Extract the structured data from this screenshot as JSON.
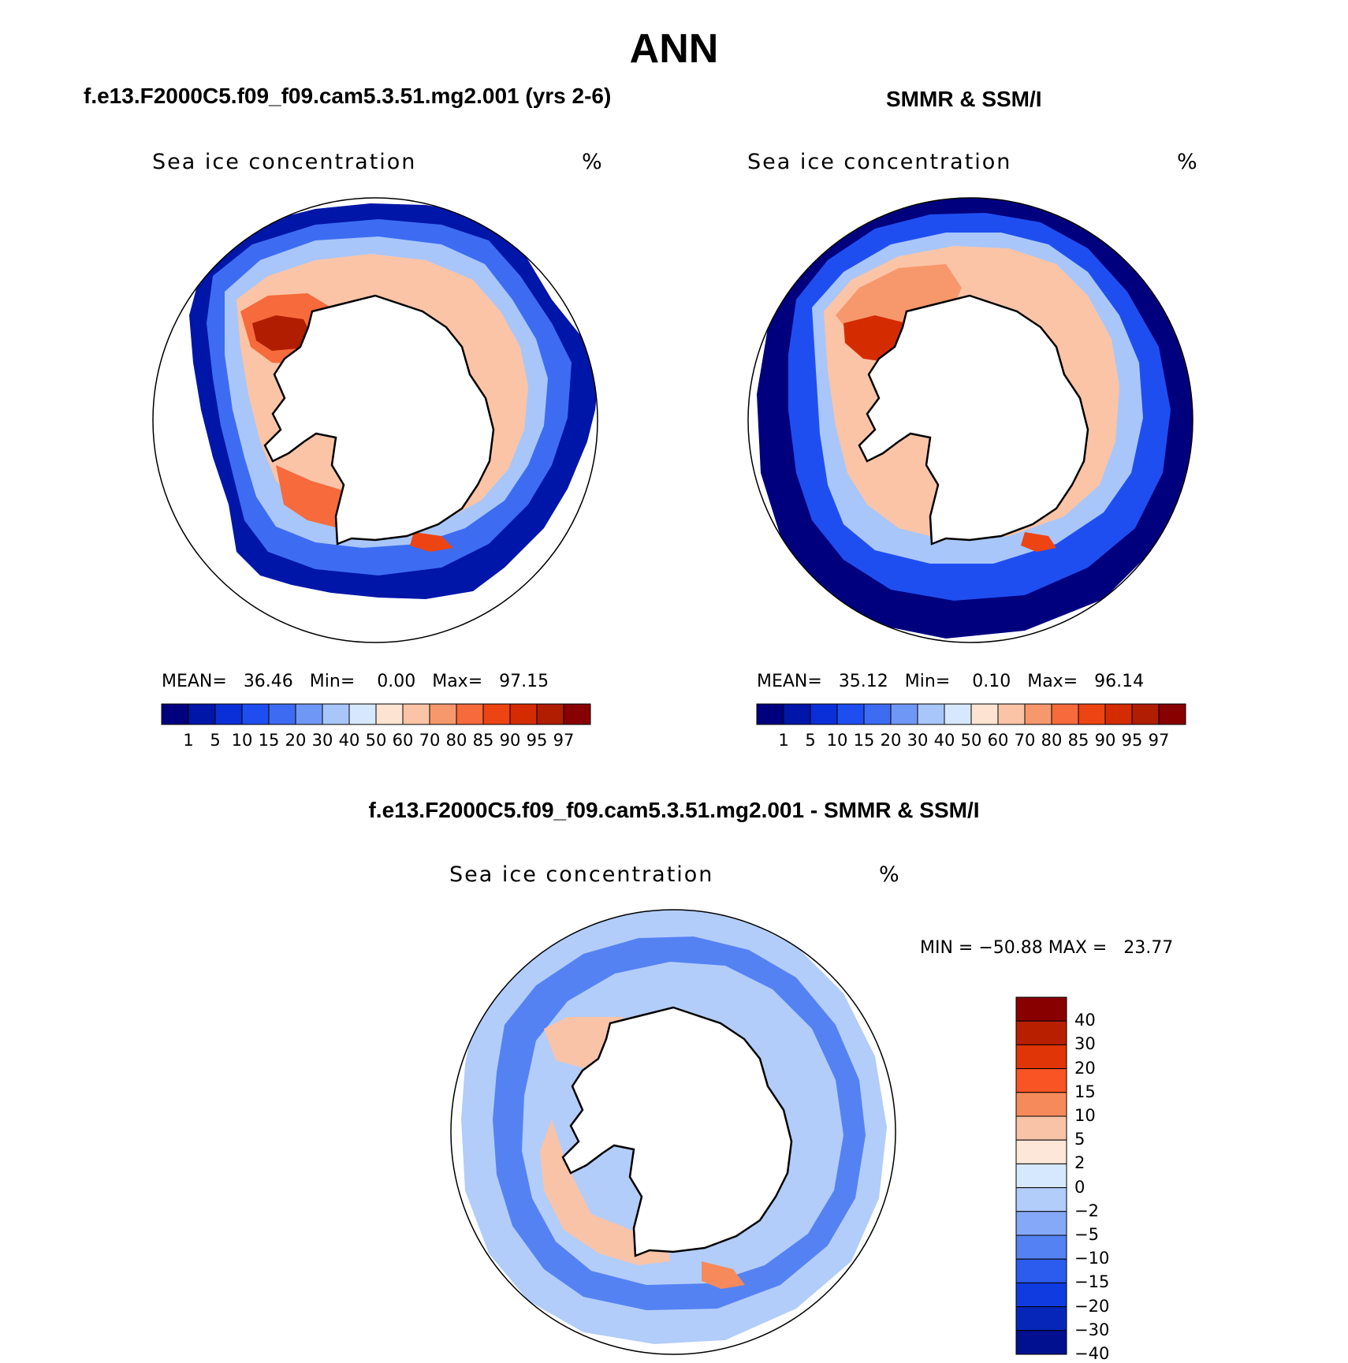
{
  "main_title": "ANN",
  "panels": {
    "model": {
      "title": "f.e13.F2000C5.f09_f09.cam5.3.51.mg2.001 (yrs 2-6)",
      "variable": "Sea ice concentration",
      "units": "%",
      "stats": {
        "mean_label": "MEAN=",
        "mean": "36.46",
        "min_label": "Min=",
        "min": "0.00",
        "max_label": "Max=",
        "max": "97.15"
      }
    },
    "obs": {
      "title": "SMMR & SSM/I",
      "variable": "Sea ice concentration",
      "units": "%",
      "stats": {
        "mean_label": "MEAN=",
        "mean": "35.12",
        "min_label": "Min=",
        "min": "0.10",
        "max_label": "Max=",
        "max": "96.14"
      }
    },
    "diff": {
      "title": "f.e13.F2000C5.f09_f09.cam5.3.51.mg2.001 - SMMR & SSM/I",
      "variable": "Sea ice concentration",
      "units": "%",
      "stats": {
        "min_label": "MIN =",
        "min": "−50.88",
        "max_label": "MAX =",
        "max": "23.77"
      }
    }
  },
  "abs_colorbar": {
    "colors": [
      "#00007f",
      "#0016a8",
      "#0a2fd8",
      "#1f4ef0",
      "#3d6cf2",
      "#6f97f5",
      "#a8c6fa",
      "#d6e8fd",
      "#fde4d2",
      "#fbc4a7",
      "#f7986c",
      "#f66a3b",
      "#ed4413",
      "#d42c00",
      "#b01d00",
      "#880000"
    ],
    "ticks": [
      "1",
      "5",
      "10",
      "15",
      "20",
      "30",
      "40",
      "50",
      "60",
      "70",
      "80",
      "85",
      "90",
      "95",
      "97"
    ]
  },
  "diff_colorbar": {
    "colors": [
      "#880000",
      "#b81f00",
      "#e03507",
      "#f85424",
      "#f78a5b",
      "#f9c3a8",
      "#fde7d9",
      "#d6e8fd",
      "#b2cdfa",
      "#85a9f7",
      "#5582f3",
      "#2c5cee",
      "#0f3be0",
      "#0526b9",
      "#00108f"
    ],
    "ticks": [
      "40",
      "30",
      "20",
      "15",
      "10",
      "5",
      "2",
      "0",
      "−2",
      "−5",
      "−10",
      "−15",
      "−20",
      "−30",
      "−40"
    ]
  },
  "chart_data": {
    "type": "polar-stereographic filled contour maps",
    "region": "Antarctica / Southern Ocean",
    "maps": [
      {
        "title": "f.e13.F2000C5.f09_f09.cam5.3.51.mg2.001 (yrs 2-6)",
        "variable": "Sea ice concentration",
        "units": "%",
        "mean": 36.46,
        "min": 0.0,
        "max": 97.15,
        "contour_levels": [
          1,
          5,
          10,
          15,
          20,
          30,
          40,
          50,
          60,
          70,
          80,
          85,
          90,
          95,
          97
        ]
      },
      {
        "title": "SMMR & SSM/I",
        "variable": "Sea ice concentration",
        "units": "%",
        "mean": 35.12,
        "min": 0.1,
        "max": 96.14,
        "contour_levels": [
          1,
          5,
          10,
          15,
          20,
          30,
          40,
          50,
          60,
          70,
          80,
          85,
          90,
          95,
          97
        ]
      },
      {
        "title": "f.e13.F2000C5.f09_f09.cam5.3.51.mg2.001 - SMMR & SSM/I",
        "variable": "Sea ice concentration",
        "units": "%",
        "min": -50.88,
        "max": 23.77,
        "contour_levels": [
          -40,
          -30,
          -20,
          -15,
          -10,
          -5,
          -2,
          0,
          2,
          5,
          10,
          15,
          20,
          30,
          40
        ]
      }
    ]
  }
}
